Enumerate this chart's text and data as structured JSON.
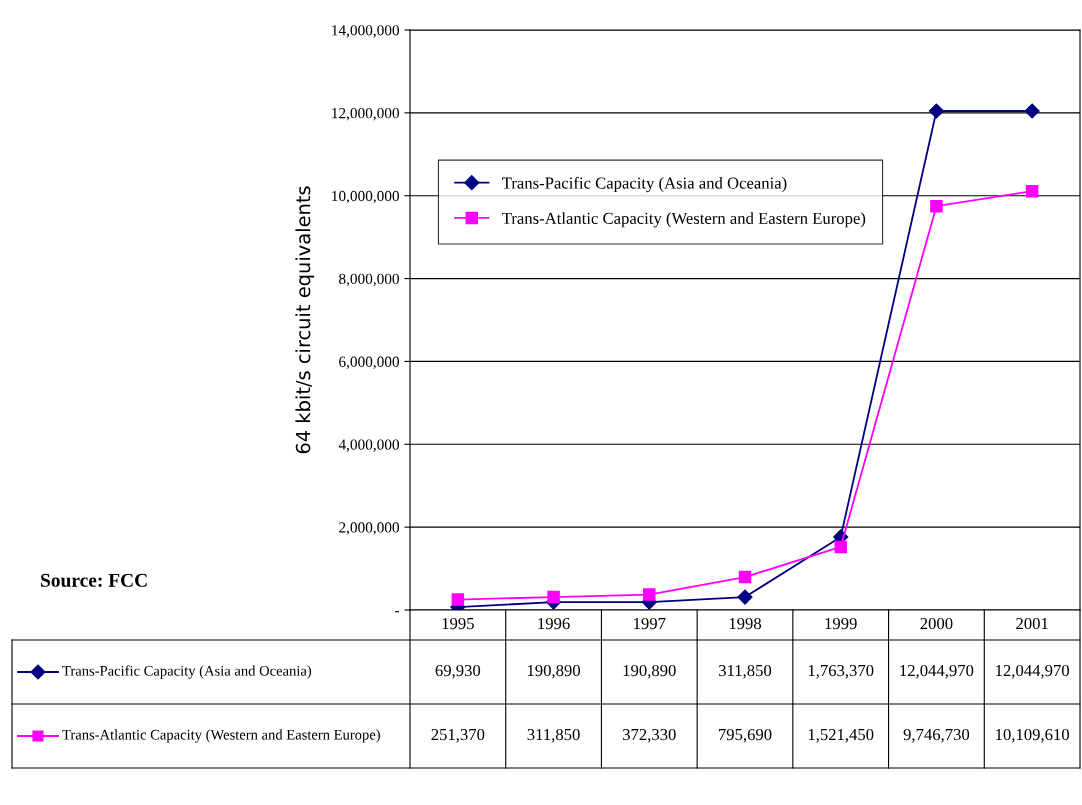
{
  "chart_data": {
    "type": "line",
    "ylabel": "64 kbit/s circuit equivalents",
    "categories": [
      "1995",
      "1996",
      "1997",
      "1998",
      "1999",
      "2000",
      "2001"
    ],
    "series": [
      {
        "name": "Trans-Pacific Capacity (Asia and Oceania)",
        "color": "#000080",
        "marker": "diamond",
        "values": [
          69930,
          190890,
          190890,
          311850,
          1763370,
          12044970,
          12044970
        ],
        "value_labels": [
          "69,930",
          "190,890",
          "190,890",
          "311,850",
          "1,763,370",
          "12,044,970",
          "12,044,970"
        ]
      },
      {
        "name": "Trans-Atlantic Capacity (Western and Eastern Europe)",
        "color": "#ff00ff",
        "marker": "square",
        "values": [
          251370,
          311850,
          372330,
          795690,
          1521450,
          9746730,
          10109610
        ],
        "value_labels": [
          "251,370",
          "311,850",
          "372,330",
          "795,690",
          "1,521,450",
          "9,746,730",
          "10,109,610"
        ]
      }
    ],
    "ylim": [
      0,
      14000000
    ],
    "yticks": [
      {
        "value": 0,
        "label": "-"
      },
      {
        "value": 2000000,
        "label": "2,000,000"
      },
      {
        "value": 4000000,
        "label": "4,000,000"
      },
      {
        "value": 6000000,
        "label": "6,000,000"
      },
      {
        "value": 8000000,
        "label": "8,000,000"
      },
      {
        "value": 10000000,
        "label": "10,000,000"
      },
      {
        "value": 12000000,
        "label": "12,000,000"
      },
      {
        "value": 14000000,
        "label": "14,000,000"
      }
    ],
    "grid": "y",
    "legend": "top left",
    "line_style": "solid",
    "annotations": [
      "Source: FCC"
    ]
  }
}
